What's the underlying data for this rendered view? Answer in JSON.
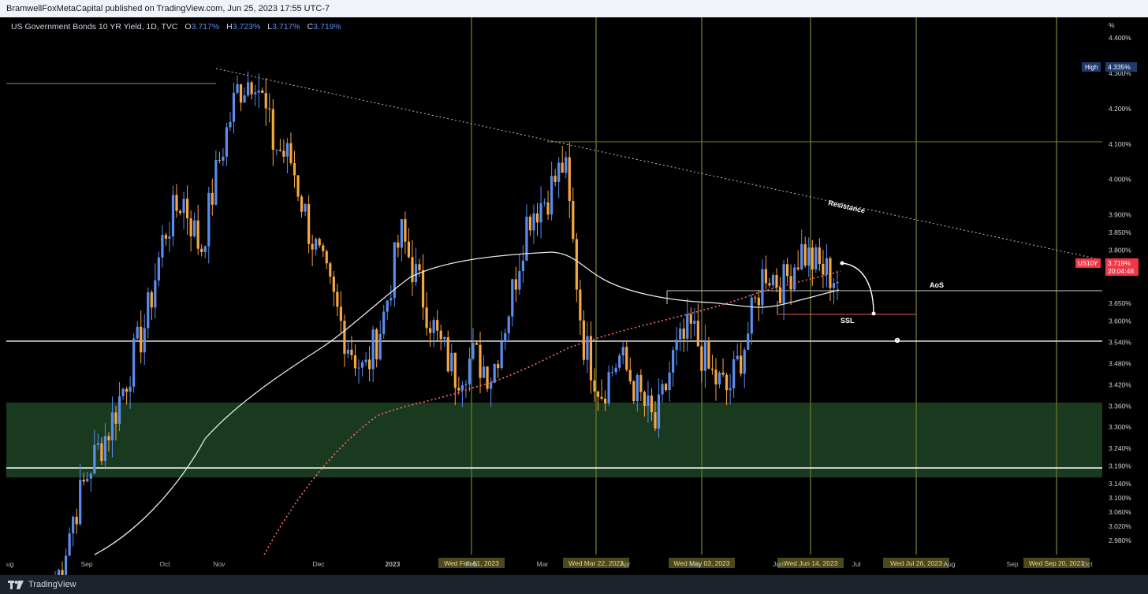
{
  "header": {
    "publisher": "BramwellFoxMetaCapital published on TradingView.com, Jun 25, 2023 17:55 UTC-7"
  },
  "legend": {
    "symbol": "US Government Bonds 10 YR Yield, 1D, TVC",
    "open_label": "O",
    "open": "3.717%",
    "high_label": "H",
    "high": "3.723%",
    "low_label": "L",
    "low": "3.717%",
    "close_label": "C",
    "close": "3.719%"
  },
  "footer": {
    "brand": "TradingView"
  },
  "colors": {
    "background": "#000000",
    "bull": "#5b8def",
    "bear": "#f5a742",
    "support_zone": "#1a3a1f",
    "time_lines": "#5f6b2a",
    "ema": "#ff6b6b",
    "price_tag": "#f23645",
    "high_tag": "#1e3a6e"
  },
  "chart_data": {
    "type": "candlestick",
    "symbol": "US10Y",
    "ylabel": "%",
    "ylim": [
      2.94,
      4.44
    ],
    "y_tick_labels": [
      "4.400%",
      "4.300%",
      "4.200%",
      "4.100%",
      "4.000%",
      "3.900%",
      "3.850%",
      "3.800%",
      "3.750%",
      "3.650%",
      "3.600%",
      "3.540%",
      "3.480%",
      "3.420%",
      "3.360%",
      "3.300%",
      "3.240%",
      "3.190%",
      "3.140%",
      "3.100%",
      "3.060%",
      "3.020%",
      "2.980%"
    ],
    "x_tick_labels": [
      "ug",
      "Sep",
      "Oct",
      "Nov",
      "Dec",
      "2023",
      "Feb",
      "Mar",
      "Apr",
      "May",
      "Jun",
      "Jul",
      "Aug",
      "Sep",
      "Oct"
    ],
    "x_date_highlights": [
      "Wed Feb 01, 2023",
      "Wed Mar 22, 2023",
      "Wed May 03, 2023",
      "Wed Jun 14, 2023",
      "Wed Jul 26, 2023",
      "Wed Sep 20, 2023"
    ],
    "price_tag": {
      "symbol": "US10Y",
      "value": "3.719%",
      "countdown": "20:04:48"
    },
    "high_tag": {
      "label": "High",
      "value": "4.335%"
    },
    "annotations": [
      "Resistance",
      "AoS",
      "SSL"
    ],
    "grid": false,
    "closes_by_month": {
      "2022-08": [
        2.85,
        3.05,
        3.2
      ],
      "2022-09": [
        3.3,
        3.45,
        3.6,
        3.85,
        3.95
      ],
      "2022-10": [
        3.8,
        4.05,
        4.25,
        4.3
      ],
      "2022-11": [
        4.1,
        4.05,
        3.85,
        3.7
      ],
      "2022-12": [
        3.55,
        3.45,
        3.6,
        3.85
      ],
      "2023-01": [
        3.7,
        3.55,
        3.45,
        3.5
      ],
      "2023-02": [
        3.45,
        3.65,
        3.9,
        3.95
      ],
      "2023-03": [
        4.05,
        3.55,
        3.4,
        3.5
      ],
      "2023-04": [
        3.4,
        3.3,
        3.5,
        3.58
      ],
      "2023-05": [
        3.45,
        3.4,
        3.55,
        3.75
      ],
      "2023-06": [
        3.7,
        3.8,
        3.75,
        3.72
      ]
    }
  }
}
